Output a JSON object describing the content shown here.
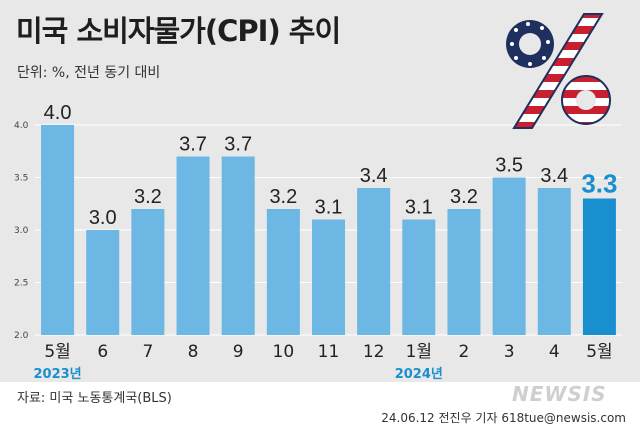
{
  "title": "미국 소비자물가(CPI) 추이",
  "unit": "단위: %, 전년 동기 대비",
  "source": "자료: 미국 노동통계국(BLS)",
  "credit": "24.06.12 전진우 기자 618tue@newsis.com",
  "logo": "NEWSIS",
  "colors": {
    "bar": "#6cb7e3",
    "highlight": "#1a8fd0",
    "background": "#e8e8e8"
  },
  "chart_data": {
    "type": "bar",
    "categories": [
      "5월",
      "6",
      "7",
      "8",
      "9",
      "10",
      "11",
      "12",
      "1월",
      "2",
      "3",
      "4",
      "5월"
    ],
    "values": [
      4.0,
      3.0,
      3.2,
      3.7,
      3.7,
      3.2,
      3.1,
      3.4,
      3.1,
      3.2,
      3.5,
      3.4,
      3.3
    ],
    "value_labels": [
      "4.0",
      "3.0",
      "3.2",
      "3.7",
      "3.7",
      "3.2",
      "3.1",
      "3.4",
      "3.1",
      "3.2",
      "3.5",
      "3.4",
      "3.3"
    ],
    "year_labels": [
      {
        "index": 0,
        "label": "2023년"
      },
      {
        "index": 8,
        "label": "2024년"
      }
    ],
    "highlight_index": 12,
    "ylim": [
      2.0,
      4.0
    ],
    "yticks": [
      "2.0",
      "2.5",
      "3.0",
      "3.5",
      "4.0"
    ],
    "grid": true,
    "title": "미국 소비자물가(CPI) 추이",
    "xlabel": "",
    "ylabel": ""
  }
}
